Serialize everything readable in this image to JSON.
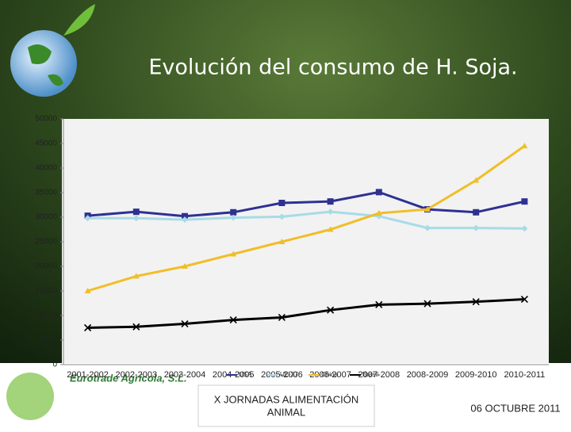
{
  "chart_data": {
    "type": "line",
    "title": "Evolución del consumo de H. Soja.",
    "categories": [
      "2001-2002",
      "2002-2003",
      "2003-2004",
      "2004-2005",
      "2005-2006",
      "2006-2007",
      "2007-2008",
      "2008-2009",
      "2009-2010",
      "2010-2011"
    ],
    "series": [
      {
        "name": "USA",
        "color": "#2e3192",
        "marker": "square",
        "values": [
          30300,
          31100,
          30200,
          31000,
          32900,
          33200,
          35100,
          31600,
          31000,
          33200
        ]
      },
      {
        "name": "UE-27",
        "color": "#a8dbe6",
        "marker": "diamond",
        "values": [
          29800,
          29800,
          29500,
          29900,
          30100,
          31100,
          30200,
          27800,
          27800,
          27700
        ]
      },
      {
        "name": "China",
        "color": "#f0be28",
        "marker": "triangle",
        "values": [
          15000,
          18000,
          20000,
          22500,
          25000,
          27500,
          30800,
          31600,
          37500,
          44500
        ]
      },
      {
        "name": "Brasil",
        "color": "#000000",
        "marker": "x",
        "values": [
          7500,
          7700,
          8300,
          9100,
          9600,
          11100,
          12200,
          12400,
          12800,
          13300
        ]
      }
    ],
    "ylim": [
      0,
      50000
    ],
    "yticks": [
      0,
      5000,
      10000,
      15000,
      20000,
      25000,
      30000,
      35000,
      40000,
      45000,
      50000
    ],
    "grid": false
  },
  "footer": {
    "company": "Eurotrade Agrícola, S.L.",
    "event": "X JORNADAS ALIMENTACIÓN ANIMAL",
    "date": "06 OCTUBRE 2011"
  }
}
